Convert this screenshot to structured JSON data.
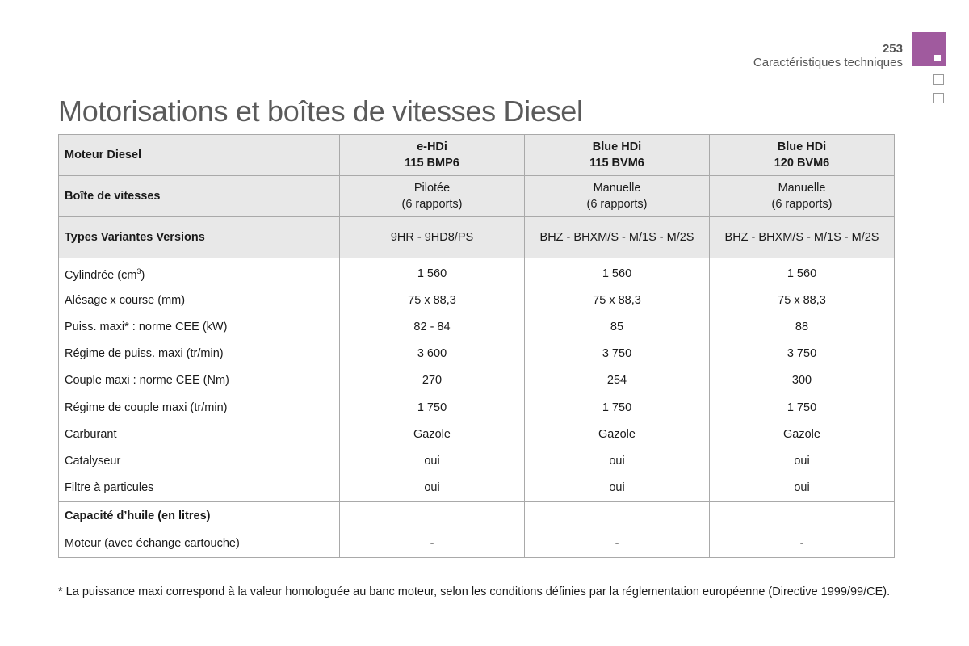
{
  "header": {
    "page_number": "253",
    "section": "Caractéristiques techniques",
    "accent_color": "#a05a9e"
  },
  "title": "Motorisations et boîtes de vitesses Diesel",
  "table": {
    "header_rows": [
      {
        "label": "Moteur Diesel",
        "bold": true,
        "cells": [
          [
            "e-HDi",
            "115 BMP6"
          ],
          [
            "Blue HDi",
            "115 BVM6"
          ],
          [
            "Blue HDi",
            "120 BVM6"
          ]
        ]
      },
      {
        "label": "Boîte de vitesses",
        "bold": false,
        "cells": [
          [
            "Pilotée",
            "(6 rapports)"
          ],
          [
            "Manuelle",
            "(6 rapports)"
          ],
          [
            "Manuelle",
            "(6 rapports)"
          ]
        ]
      },
      {
        "label": "Types Variantes Versions",
        "bold": false,
        "cells": [
          [
            "9HR - 9HD8/PS"
          ],
          [
            "BHZ - BHXM/S - M/1S - M/2S"
          ],
          [
            "BHZ - BHXM/S - M/1S - M/2S"
          ]
        ]
      }
    ],
    "rows": [
      {
        "label": "Cylindrée (cm",
        "label_sup": "3",
        "label_end": ")",
        "values": [
          "1 560",
          "1 560",
          "1 560"
        ]
      },
      {
        "label": "Alésage x course (mm)",
        "values": [
          "75 x 88,3",
          "75 x 88,3",
          "75 x 88,3"
        ]
      },
      {
        "label": "Puiss. maxi* : norme CEE (kW)",
        "values": [
          "82 - 84",
          "85",
          "88"
        ]
      },
      {
        "label": "Régime de puiss. maxi (tr/min)",
        "values": [
          "3 600",
          "3 750",
          "3 750"
        ]
      },
      {
        "label": "Couple maxi : norme CEE (Nm)",
        "values": [
          "270",
          "254",
          "300"
        ]
      },
      {
        "label": "Régime de couple maxi (tr/min)",
        "values": [
          "1 750",
          "1 750",
          "1 750"
        ]
      },
      {
        "label": "Carburant",
        "values": [
          "Gazole",
          "Gazole",
          "Gazole"
        ]
      },
      {
        "label": "Catalyseur",
        "values": [
          "oui",
          "oui",
          "oui"
        ]
      },
      {
        "label": "Filtre à particules",
        "values": [
          "oui",
          "oui",
          "oui"
        ]
      }
    ],
    "oil_section": {
      "label": "Capacité d’huile (en litres)",
      "row": {
        "label": "Moteur (avec échange cartouche)",
        "values": [
          "-",
          "-",
          "-"
        ]
      }
    }
  },
  "footnote": "* La puissance maxi correspond à la valeur homologuée au banc moteur, selon les conditions définies par la réglementation européenne (Directive 1999/99/CE)."
}
